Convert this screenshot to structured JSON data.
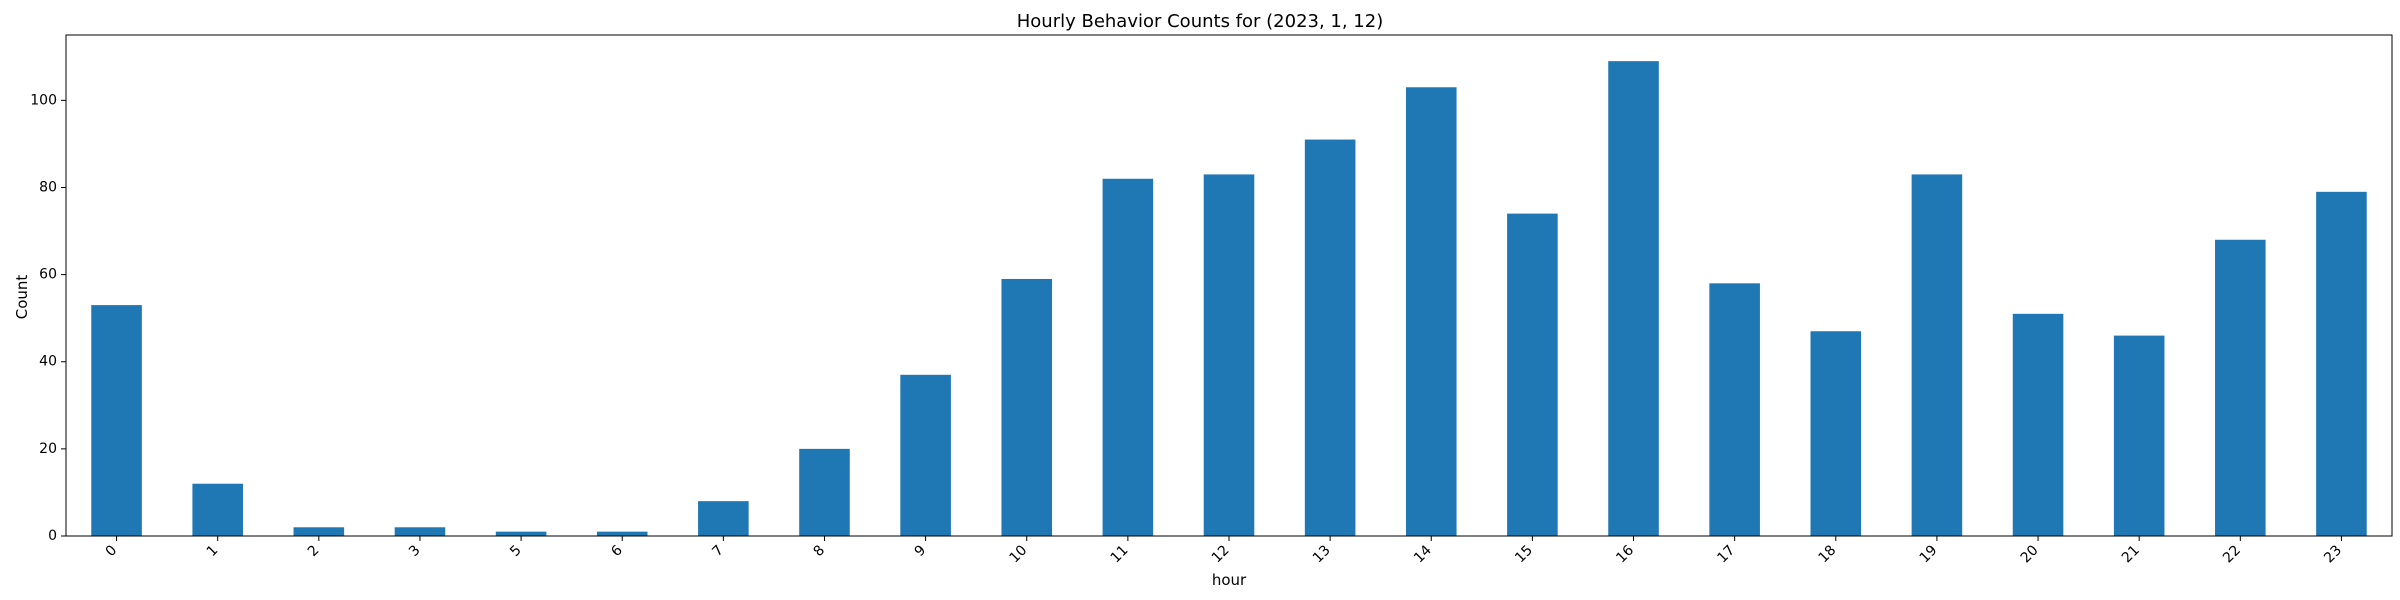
{
  "chart_data": {
    "type": "bar",
    "title": "Hourly Behavior Counts for (2023, 1, 12)",
    "xlabel": "hour",
    "ylabel": "Count",
    "categories": [
      "0",
      "1",
      "2",
      "3",
      "5",
      "6",
      "7",
      "8",
      "9",
      "10",
      "11",
      "12",
      "13",
      "14",
      "15",
      "16",
      "17",
      "18",
      "19",
      "20",
      "21",
      "22",
      "23"
    ],
    "values": [
      53,
      12,
      2,
      2,
      1,
      1,
      8,
      20,
      37,
      59,
      82,
      83,
      91,
      103,
      74,
      109,
      58,
      47,
      83,
      51,
      46,
      68,
      79
    ],
    "ylim": [
      0,
      115
    ],
    "yticks": [
      0,
      20,
      40,
      60,
      80,
      100
    ],
    "grid": false,
    "legend": "none",
    "bar_color": "#1f77b4"
  }
}
